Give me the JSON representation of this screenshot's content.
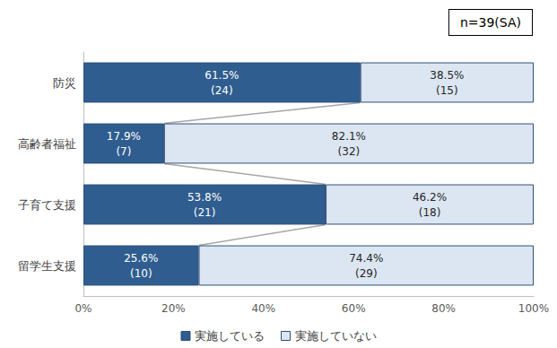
{
  "chart_data": {
    "type": "bar",
    "orientation": "horizontal",
    "stacked": true,
    "annotation": "n=39(SA)",
    "categories": [
      "防災",
      "高齢者福祉",
      "子育て支援",
      "留学生支援"
    ],
    "series": [
      {
        "name": "実施している",
        "color": "#2f5d8f",
        "values": [
          61.5,
          17.9,
          53.8,
          25.6
        ],
        "value_labels": [
          "61.5%\n(24)",
          "17.9%\n(7)",
          "53.8%\n(21)",
          "25.6%\n(10)"
        ]
      },
      {
        "name": "実施していない",
        "color": "#dce6f2",
        "values": [
          38.5,
          82.1,
          46.2,
          74.4
        ],
        "value_labels": [
          "38.5%\n(15)",
          "82.1%\n(32)",
          "46.2%\n(18)",
          "74.4%\n(29)"
        ]
      }
    ],
    "xlim": [
      0,
      100
    ],
    "xticks": [
      {
        "value": 0,
        "label": "0%"
      },
      {
        "value": 20,
        "label": "20%"
      },
      {
        "value": 40,
        "label": "40%"
      },
      {
        "value": 60,
        "label": "60%"
      },
      {
        "value": 80,
        "label": "80%"
      },
      {
        "value": 100,
        "label": "100%"
      }
    ],
    "grid": false,
    "legend": "bottom",
    "data_labels": true
  }
}
